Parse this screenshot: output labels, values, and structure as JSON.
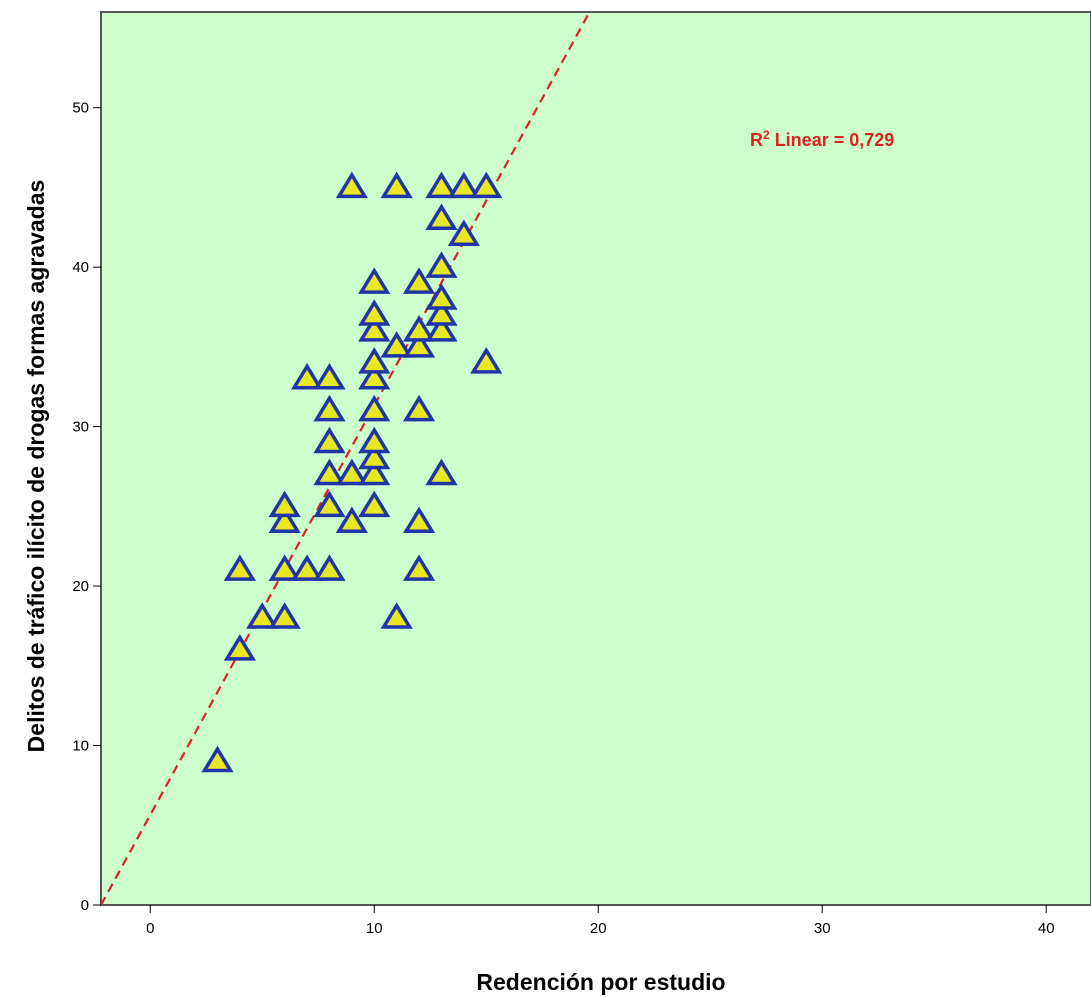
{
  "chart_data": {
    "type": "scatter",
    "xlabel": "Redención por estudio",
    "ylabel": "Delitos de tráfico ilícito de drogas formas agravadas",
    "xlim": [
      -2.2,
      42
    ],
    "ylim": [
      0,
      56
    ],
    "x_ticks": [
      0,
      10,
      20,
      30,
      40
    ],
    "y_ticks": [
      0,
      10,
      20,
      30,
      40,
      50
    ],
    "marker": "triangle",
    "colors": {
      "plot_background": "#ccffcc",
      "marker_fill": "#e8e820",
      "marker_stroke": "#1f35a8",
      "fit_line": "#dd2222",
      "annotation": "#dd2222"
    },
    "annotation": {
      "prefix": "R",
      "superscript": "2",
      "text": " Linear = 0,729"
    },
    "fit_line": {
      "style": "dashed",
      "points": [
        [
          -2.2,
          0
        ],
        [
          20,
          57
        ]
      ]
    },
    "points": [
      [
        3,
        9
      ],
      [
        4,
        16
      ],
      [
        4,
        21
      ],
      [
        5,
        18
      ],
      [
        6,
        18
      ],
      [
        6,
        21
      ],
      [
        6,
        24
      ],
      [
        6,
        25
      ],
      [
        7,
        21
      ],
      [
        7,
        33
      ],
      [
        8,
        21
      ],
      [
        8,
        25
      ],
      [
        8,
        27
      ],
      [
        8,
        29
      ],
      [
        8,
        31
      ],
      [
        8,
        33
      ],
      [
        9,
        24
      ],
      [
        9,
        27
      ],
      [
        9,
        45
      ],
      [
        10,
        25
      ],
      [
        10,
        27
      ],
      [
        10,
        28
      ],
      [
        10,
        29
      ],
      [
        10,
        31
      ],
      [
        10,
        33
      ],
      [
        10,
        34
      ],
      [
        10,
        36
      ],
      [
        10,
        37
      ],
      [
        10,
        39
      ],
      [
        11,
        18
      ],
      [
        11,
        35
      ],
      [
        11,
        45
      ],
      [
        12,
        21
      ],
      [
        12,
        24
      ],
      [
        12,
        31
      ],
      [
        12,
        35
      ],
      [
        12,
        36
      ],
      [
        12,
        39
      ],
      [
        13,
        27
      ],
      [
        13,
        36
      ],
      [
        13,
        37
      ],
      [
        13,
        38
      ],
      [
        13,
        40
      ],
      [
        13,
        43
      ],
      [
        13,
        45
      ],
      [
        14,
        42
      ],
      [
        14,
        45
      ],
      [
        15,
        34
      ],
      [
        15,
        45
      ]
    ]
  }
}
